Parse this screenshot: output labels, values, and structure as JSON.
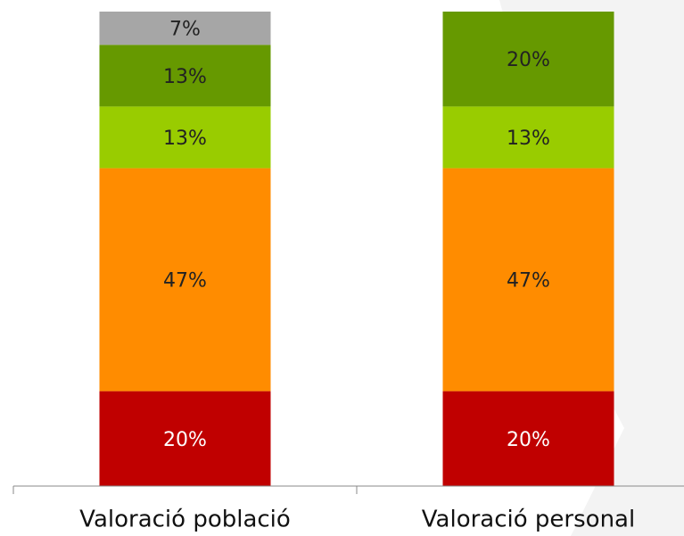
{
  "chart_data": {
    "type": "stacked_bar",
    "categories": [
      "Valoració població",
      "Valoració personal"
    ],
    "series": [
      {
        "color": "#c00000",
        "values": [
          20,
          20
        ],
        "value_labels": [
          "20%",
          "20%"
        ]
      },
      {
        "color": "#ff8c00",
        "values": [
          47,
          47
        ],
        "value_labels": [
          "47%",
          "47%"
        ]
      },
      {
        "color": "#99cc00",
        "values": [
          13,
          13
        ],
        "value_labels": [
          "13%",
          "13%"
        ]
      },
      {
        "color": "#669900",
        "values": [
          13,
          20
        ],
        "value_labels": [
          "13%",
          "20%"
        ]
      },
      {
        "color": "#a6a6a6",
        "values": [
          7,
          null
        ],
        "value_labels": [
          "7%",
          null
        ]
      }
    ]
  }
}
